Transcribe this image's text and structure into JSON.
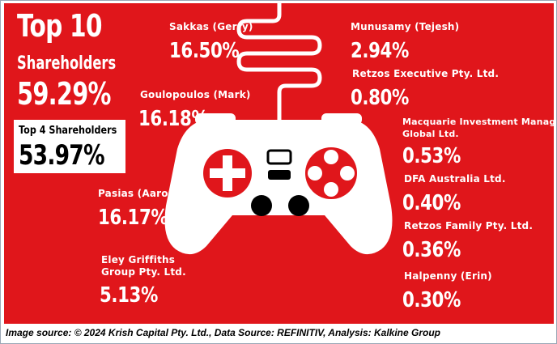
{
  "summary": {
    "title": "Top 10",
    "subtitle": "Shareholders",
    "top10_value": "59.29%",
    "top4_label": "Top 4 Shareholders",
    "top4_value": "53.97%"
  },
  "shareholders": [
    {
      "name": "Sakkas (Gerry)",
      "value": "16.50%"
    },
    {
      "name": "Goulopoulos (Mark)",
      "value": "16.18%"
    },
    {
      "name": "Pasias (Aaron)",
      "value": "16.17%"
    },
    {
      "name_line1": "Eley Griffiths",
      "name_line2": "Group Pty. Ltd.",
      "value": "5.13%"
    },
    {
      "name": "Munusamy (Tejesh)",
      "value": "2.94%"
    },
    {
      "name": "Retzos Executive Pty. Ltd.",
      "value": "0.80%"
    },
    {
      "name_line1": "Macquarie Investment Management",
      "name_line2": "Global Ltd.",
      "value": "0.53%"
    },
    {
      "name": "DFA Australia Ltd.",
      "value": "0.40%"
    },
    {
      "name": "Retzos Family Pty. Ltd.",
      "value": "0.36%"
    },
    {
      "name": "Halpenny (Erin)",
      "value": "0.30%"
    }
  ],
  "caption": "Image source: © 2024 Krish Capital Pty. Ltd., Data Source: REFINITIV, Analysis: Kalkine Group",
  "colors": {
    "background": "#e0161b",
    "text": "#ffffff",
    "top4_text": "#000000"
  },
  "illustration": "game-controller-icon"
}
